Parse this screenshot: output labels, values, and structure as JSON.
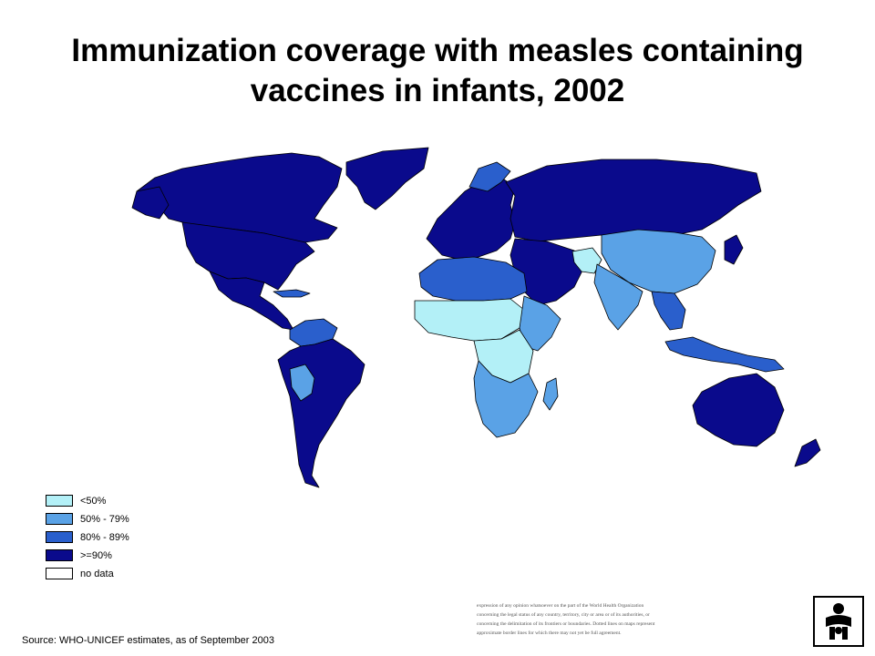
{
  "title": {
    "line1": "Immunization coverage with measles containing",
    "line2": "vaccines  in infants, 2002"
  },
  "legend": {
    "items": [
      {
        "label": "<50%",
        "color": "#b3f0f7"
      },
      {
        "label": "50% - 79%",
        "color": "#5aa2e6"
      },
      {
        "label": "80% - 89%",
        "color": "#2a5fcc"
      },
      {
        "label": ">=90%",
        "color": "#0a0a8c"
      },
      {
        "label": "no data",
        "color": "#ffffff"
      }
    ]
  },
  "source": "Source: WHO-UNICEF estimates, as of September 2003",
  "disclaimer": [
    "expression of any opinion whatsoever on the part of the World Health Organization",
    "concerning the legal status of any country, territory, city or area or of its authorities, or",
    "concerning the delimitation of its frontiers or boundaries. Dotted lines on maps represent",
    "approximate border lines for which there may not yet be full agreement."
  ],
  "colors": {
    "lt50": "#b3f0f7",
    "r50_79": "#5aa2e6",
    "r80_89": "#2a5fcc",
    "ge90": "#0a0a8c",
    "no_data": "#ffffff",
    "border": "#000000"
  },
  "icons": {
    "logo": "who-logo-icon"
  }
}
